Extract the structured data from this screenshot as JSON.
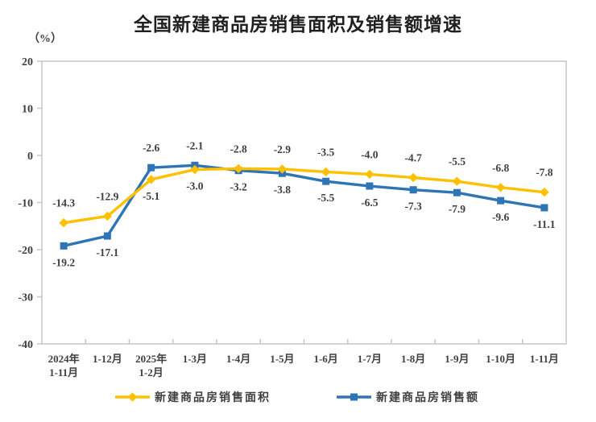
{
  "chart_data": {
    "type": "line",
    "title": "全国新建商品房销售面积及销售额增速",
    "ylabel": "（%）",
    "categories": [
      [
        "2024年",
        "1-11月"
      ],
      [
        "1-12月"
      ],
      [
        "2025年",
        "1-2月"
      ],
      [
        "1-3月"
      ],
      [
        "1-4月"
      ],
      [
        "1-5月"
      ],
      [
        "1-6月"
      ],
      [
        "1-7月"
      ],
      [
        "1-8月"
      ],
      [
        "1-9月"
      ],
      [
        "1-10月"
      ],
      [
        "1-11月"
      ]
    ],
    "series": [
      {
        "name": "新建商品房销售面积",
        "color": "#FFC000",
        "marker": "diamond",
        "values": [
          -14.3,
          -12.9,
          -5.1,
          -3.0,
          -2.8,
          -2.9,
          -3.5,
          -4.0,
          -4.7,
          -5.5,
          -6.8,
          -7.8
        ]
      },
      {
        "name": "新建商品房销售额",
        "color": "#2E75B6",
        "marker": "square",
        "values": [
          -19.2,
          -17.1,
          -2.6,
          -2.1,
          -3.2,
          -3.8,
          -5.5,
          -6.5,
          -7.3,
          -7.9,
          -9.6,
          -11.1
        ]
      }
    ],
    "ylim": [
      -40,
      20
    ],
    "ytick_step": 10,
    "yticks": [
      20,
      10,
      0,
      -10,
      -20,
      -30,
      -40
    ],
    "grid": false,
    "data_labels": true,
    "legend_position": "bottom",
    "axis_color": "#C6C6C6",
    "label_color": "#3F3F3F"
  }
}
